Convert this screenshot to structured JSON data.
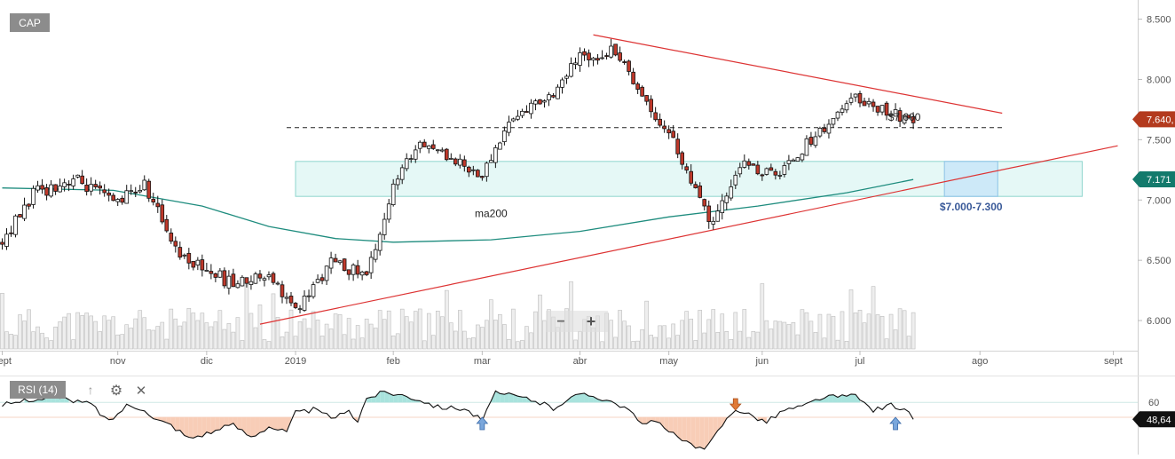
{
  "symbol": "CAP",
  "colors": {
    "up": "#ffffff",
    "down": "#c0392b",
    "wick": "#111111",
    "ma": "#1e8c7e",
    "trend": "#dd3333",
    "zone_fill": "#e5f8f6",
    "zone_stroke": "#8fd6ce",
    "target_fill": "#c9e6f8",
    "target_stroke": "#8cc2e6",
    "rsi_line": "#111111",
    "rsi_over": "#a9e3dd",
    "rsi_under": "#f8cdb7",
    "last_price": "#b33a1e",
    "ma_tag": "#137a6c",
    "rsi_tag": "#111111",
    "arrow_blue": "#7aa7dc",
    "arrow_orange": "#e07a36"
  },
  "chart_data": {
    "type": "candlestick",
    "price_axis": {
      "min": 5.75,
      "max": 8.6,
      "ticks": [
        "8.500",
        "8.000",
        "7.500",
        "7.000",
        "6.500",
        "6.000"
      ],
      "tick_values": [
        8.5,
        8.0,
        7.5,
        7.0,
        6.5,
        6.0
      ]
    },
    "time_axis": {
      "labels": [
        "sept",
        "nov",
        "dic",
        "2019",
        "feb",
        "mar",
        "abr",
        "may",
        "jun",
        "jul",
        "ago",
        "sept"
      ],
      "label_index": [
        0,
        26,
        46,
        66,
        88,
        108,
        130,
        150,
        171,
        193,
        220,
        250
      ],
      "total_slots": 256,
      "last_candle_index": 205
    },
    "ohlc_segments": [
      {
        "from": 0,
        "to": 7,
        "start": 6.65,
        "end": 7.05,
        "wiggle": 0.07
      },
      {
        "from": 7,
        "to": 16,
        "start": 7.05,
        "end": 7.18,
        "wiggle": 0.07
      },
      {
        "from": 16,
        "to": 25,
        "start": 7.18,
        "end": 6.98,
        "wiggle": 0.07
      },
      {
        "from": 25,
        "to": 32,
        "start": 6.98,
        "end": 7.12,
        "wiggle": 0.06
      },
      {
        "from": 32,
        "to": 40,
        "start": 7.12,
        "end": 6.55,
        "wiggle": 0.07
      },
      {
        "from": 40,
        "to": 52,
        "start": 6.55,
        "end": 6.3,
        "wiggle": 0.07
      },
      {
        "from": 52,
        "to": 60,
        "start": 6.3,
        "end": 6.4,
        "wiggle": 0.06
      },
      {
        "from": 60,
        "to": 66,
        "start": 6.4,
        "end": 6.07,
        "wiggle": 0.06
      },
      {
        "from": 66,
        "to": 74,
        "start": 6.07,
        "end": 6.48,
        "wiggle": 0.06
      },
      {
        "from": 74,
        "to": 82,
        "start": 6.48,
        "end": 6.38,
        "wiggle": 0.06
      },
      {
        "from": 82,
        "to": 88,
        "start": 6.38,
        "end": 7.1,
        "wiggle": 0.06
      },
      {
        "from": 88,
        "to": 94,
        "start": 7.1,
        "end": 7.5,
        "wiggle": 0.06
      },
      {
        "from": 94,
        "to": 108,
        "start": 7.5,
        "end": 7.2,
        "wiggle": 0.05
      },
      {
        "from": 108,
        "to": 114,
        "start": 7.2,
        "end": 7.65,
        "wiggle": 0.06
      },
      {
        "from": 114,
        "to": 124,
        "start": 7.65,
        "end": 7.9,
        "wiggle": 0.06
      },
      {
        "from": 124,
        "to": 130,
        "start": 7.9,
        "end": 8.18,
        "wiggle": 0.06
      },
      {
        "from": 130,
        "to": 138,
        "start": 8.18,
        "end": 8.25,
        "wiggle": 0.07
      },
      {
        "from": 138,
        "to": 146,
        "start": 8.25,
        "end": 7.75,
        "wiggle": 0.06
      },
      {
        "from": 146,
        "to": 151,
        "start": 7.75,
        "end": 7.5,
        "wiggle": 0.06
      },
      {
        "from": 151,
        "to": 156,
        "start": 7.5,
        "end": 7.05,
        "wiggle": 0.07
      },
      {
        "from": 156,
        "to": 160,
        "start": 7.05,
        "end": 6.78,
        "wiggle": 0.07
      },
      {
        "from": 160,
        "to": 166,
        "start": 6.78,
        "end": 7.3,
        "wiggle": 0.07
      },
      {
        "from": 166,
        "to": 174,
        "start": 7.3,
        "end": 7.2,
        "wiggle": 0.06
      },
      {
        "from": 174,
        "to": 182,
        "start": 7.2,
        "end": 7.5,
        "wiggle": 0.06
      },
      {
        "from": 182,
        "to": 192,
        "start": 7.5,
        "end": 7.85,
        "wiggle": 0.05
      },
      {
        "from": 192,
        "to": 198,
        "start": 7.85,
        "end": 7.75,
        "wiggle": 0.05
      },
      {
        "from": 198,
        "to": 205,
        "start": 7.75,
        "end": 7.64,
        "wiggle": 0.06
      }
    ],
    "ma200": {
      "label": "ma200",
      "points": [
        [
          0,
          7.1
        ],
        [
          25,
          7.08
        ],
        [
          45,
          6.95
        ],
        [
          60,
          6.78
        ],
        [
          75,
          6.68
        ],
        [
          88,
          6.65
        ],
        [
          110,
          6.67
        ],
        [
          130,
          6.74
        ],
        [
          150,
          6.86
        ],
        [
          170,
          6.95
        ],
        [
          190,
          7.06
        ],
        [
          205,
          7.17
        ]
      ],
      "label_at": [
        110,
        6.86
      ]
    },
    "trendlines": [
      {
        "name": "resistance",
        "from": [
          133,
          8.37
        ],
        "to": [
          225,
          7.72
        ]
      },
      {
        "name": "support",
        "from": [
          58,
          5.97
        ],
        "to": [
          251,
          7.45
        ]
      }
    ],
    "level_line": {
      "value": 7.6,
      "from": 64,
      "to": 225,
      "label": "$7.600"
    },
    "zone": {
      "from": 66,
      "to": 243,
      "low": 7.03,
      "high": 7.32
    },
    "target_box": {
      "from": 212,
      "to": 224,
      "low": 7.03,
      "high": 7.32,
      "label": "$7.000-7.300"
    },
    "last_price": {
      "value": 7.64,
      "label": "7.640,"
    },
    "ma_value": {
      "value": 7.171,
      "label": "7.171"
    },
    "rsi": {
      "label": "RSI (14)",
      "axis_label": "60",
      "level_high": 60,
      "level_low": 50,
      "min": 25,
      "max": 75,
      "last_label": "48,64",
      "points": [
        [
          0,
          58
        ],
        [
          6,
          62
        ],
        [
          12,
          63
        ],
        [
          20,
          59
        ],
        [
          24,
          47
        ],
        [
          28,
          58
        ],
        [
          32,
          56
        ],
        [
          34,
          49
        ],
        [
          38,
          45
        ],
        [
          42,
          36
        ],
        [
          48,
          41
        ],
        [
          52,
          45
        ],
        [
          56,
          37
        ],
        [
          60,
          44
        ],
        [
          64,
          40
        ],
        [
          66,
          53
        ],
        [
          70,
          55
        ],
        [
          74,
          50
        ],
        [
          78,
          53
        ],
        [
          80,
          48
        ],
        [
          82,
          63
        ],
        [
          86,
          67
        ],
        [
          90,
          65
        ],
        [
          94,
          62
        ],
        [
          98,
          57
        ],
        [
          104,
          56
        ],
        [
          108,
          48
        ],
        [
          111,
          66
        ],
        [
          116,
          64
        ],
        [
          120,
          61
        ],
        [
          124,
          56
        ],
        [
          128,
          64
        ],
        [
          132,
          65
        ],
        [
          136,
          62
        ],
        [
          140,
          57
        ],
        [
          144,
          45
        ],
        [
          148,
          48
        ],
        [
          150,
          40
        ],
        [
          154,
          33
        ],
        [
          158,
          27
        ],
        [
          162,
          45
        ],
        [
          165,
          56
        ],
        [
          168,
          52
        ],
        [
          172,
          47
        ],
        [
          176,
          55
        ],
        [
          180,
          57
        ],
        [
          184,
          63
        ],
        [
          188,
          64
        ],
        [
          192,
          64
        ],
        [
          196,
          55
        ],
        [
          200,
          58
        ],
        [
          203,
          56
        ],
        [
          205,
          48.64
        ]
      ],
      "arrows": [
        {
          "at": 108,
          "dir": "up",
          "color": "blue"
        },
        {
          "at": 165,
          "dir": "down",
          "color": "orange"
        },
        {
          "at": 201,
          "dir": "up",
          "color": "blue"
        }
      ]
    }
  }
}
